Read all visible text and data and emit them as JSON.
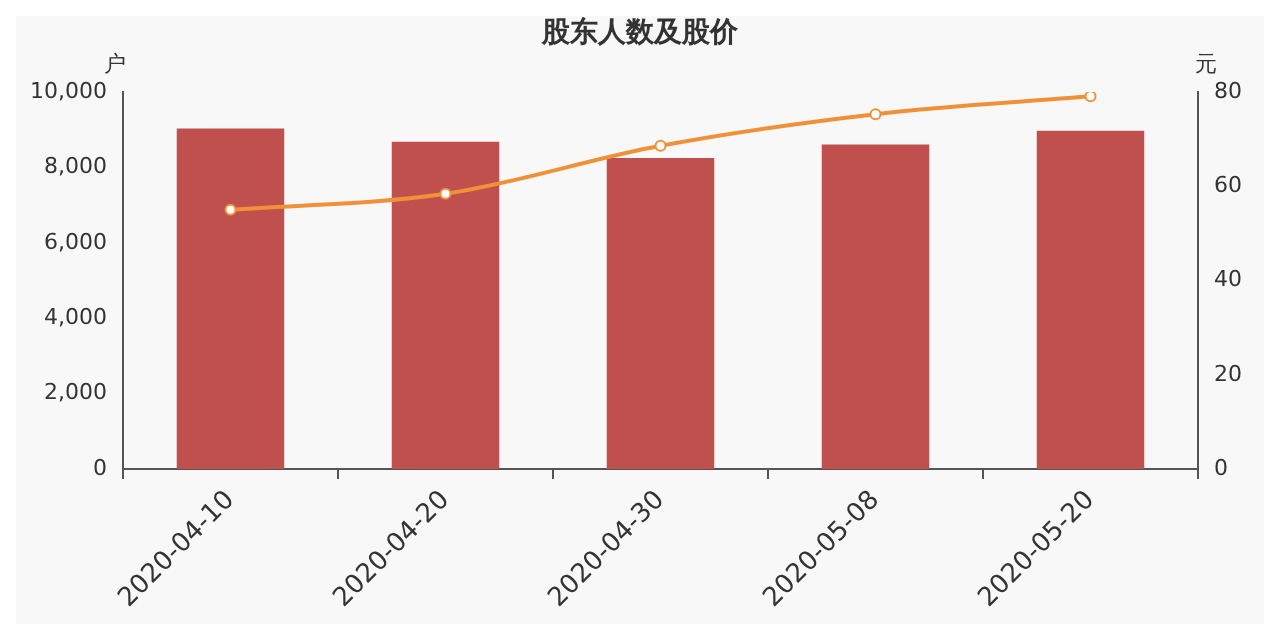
{
  "chart_data": {
    "type": "bar",
    "title": "股东人数及股价",
    "ylabel": "户",
    "y2label": "元",
    "categories": [
      "2020-04-10",
      "2020-04-20",
      "2020-04-30",
      "2020-05-08",
      "2020-05-20"
    ],
    "series": [
      {
        "color": "#c0504d",
        "values": [
          9030,
          8680,
          8250,
          8610,
          8970
        ]
      },
      {
        "type": "line",
        "axis": "y2",
        "color": "#f0913a",
        "values": [
          55,
          58.4,
          68.6,
          75.3,
          79.1
        ]
      }
    ],
    "ylim": [
      0,
      10000
    ],
    "yticks": [
      0,
      {
        "value": 2000,
        "label": "2,000"
      },
      {
        "value": 4000,
        "label": "4,000"
      },
      {
        "value": 6000,
        "label": "6,000"
      },
      {
        "value": 8000,
        "label": "8,000"
      },
      {
        "value": 10000,
        "label": "10,000"
      }
    ],
    "y2lim": [
      0,
      80
    ],
    "y2ticks": [
      0,
      20,
      40,
      60,
      80
    ],
    "grid": false,
    "legend": false,
    "marker": "circle"
  }
}
